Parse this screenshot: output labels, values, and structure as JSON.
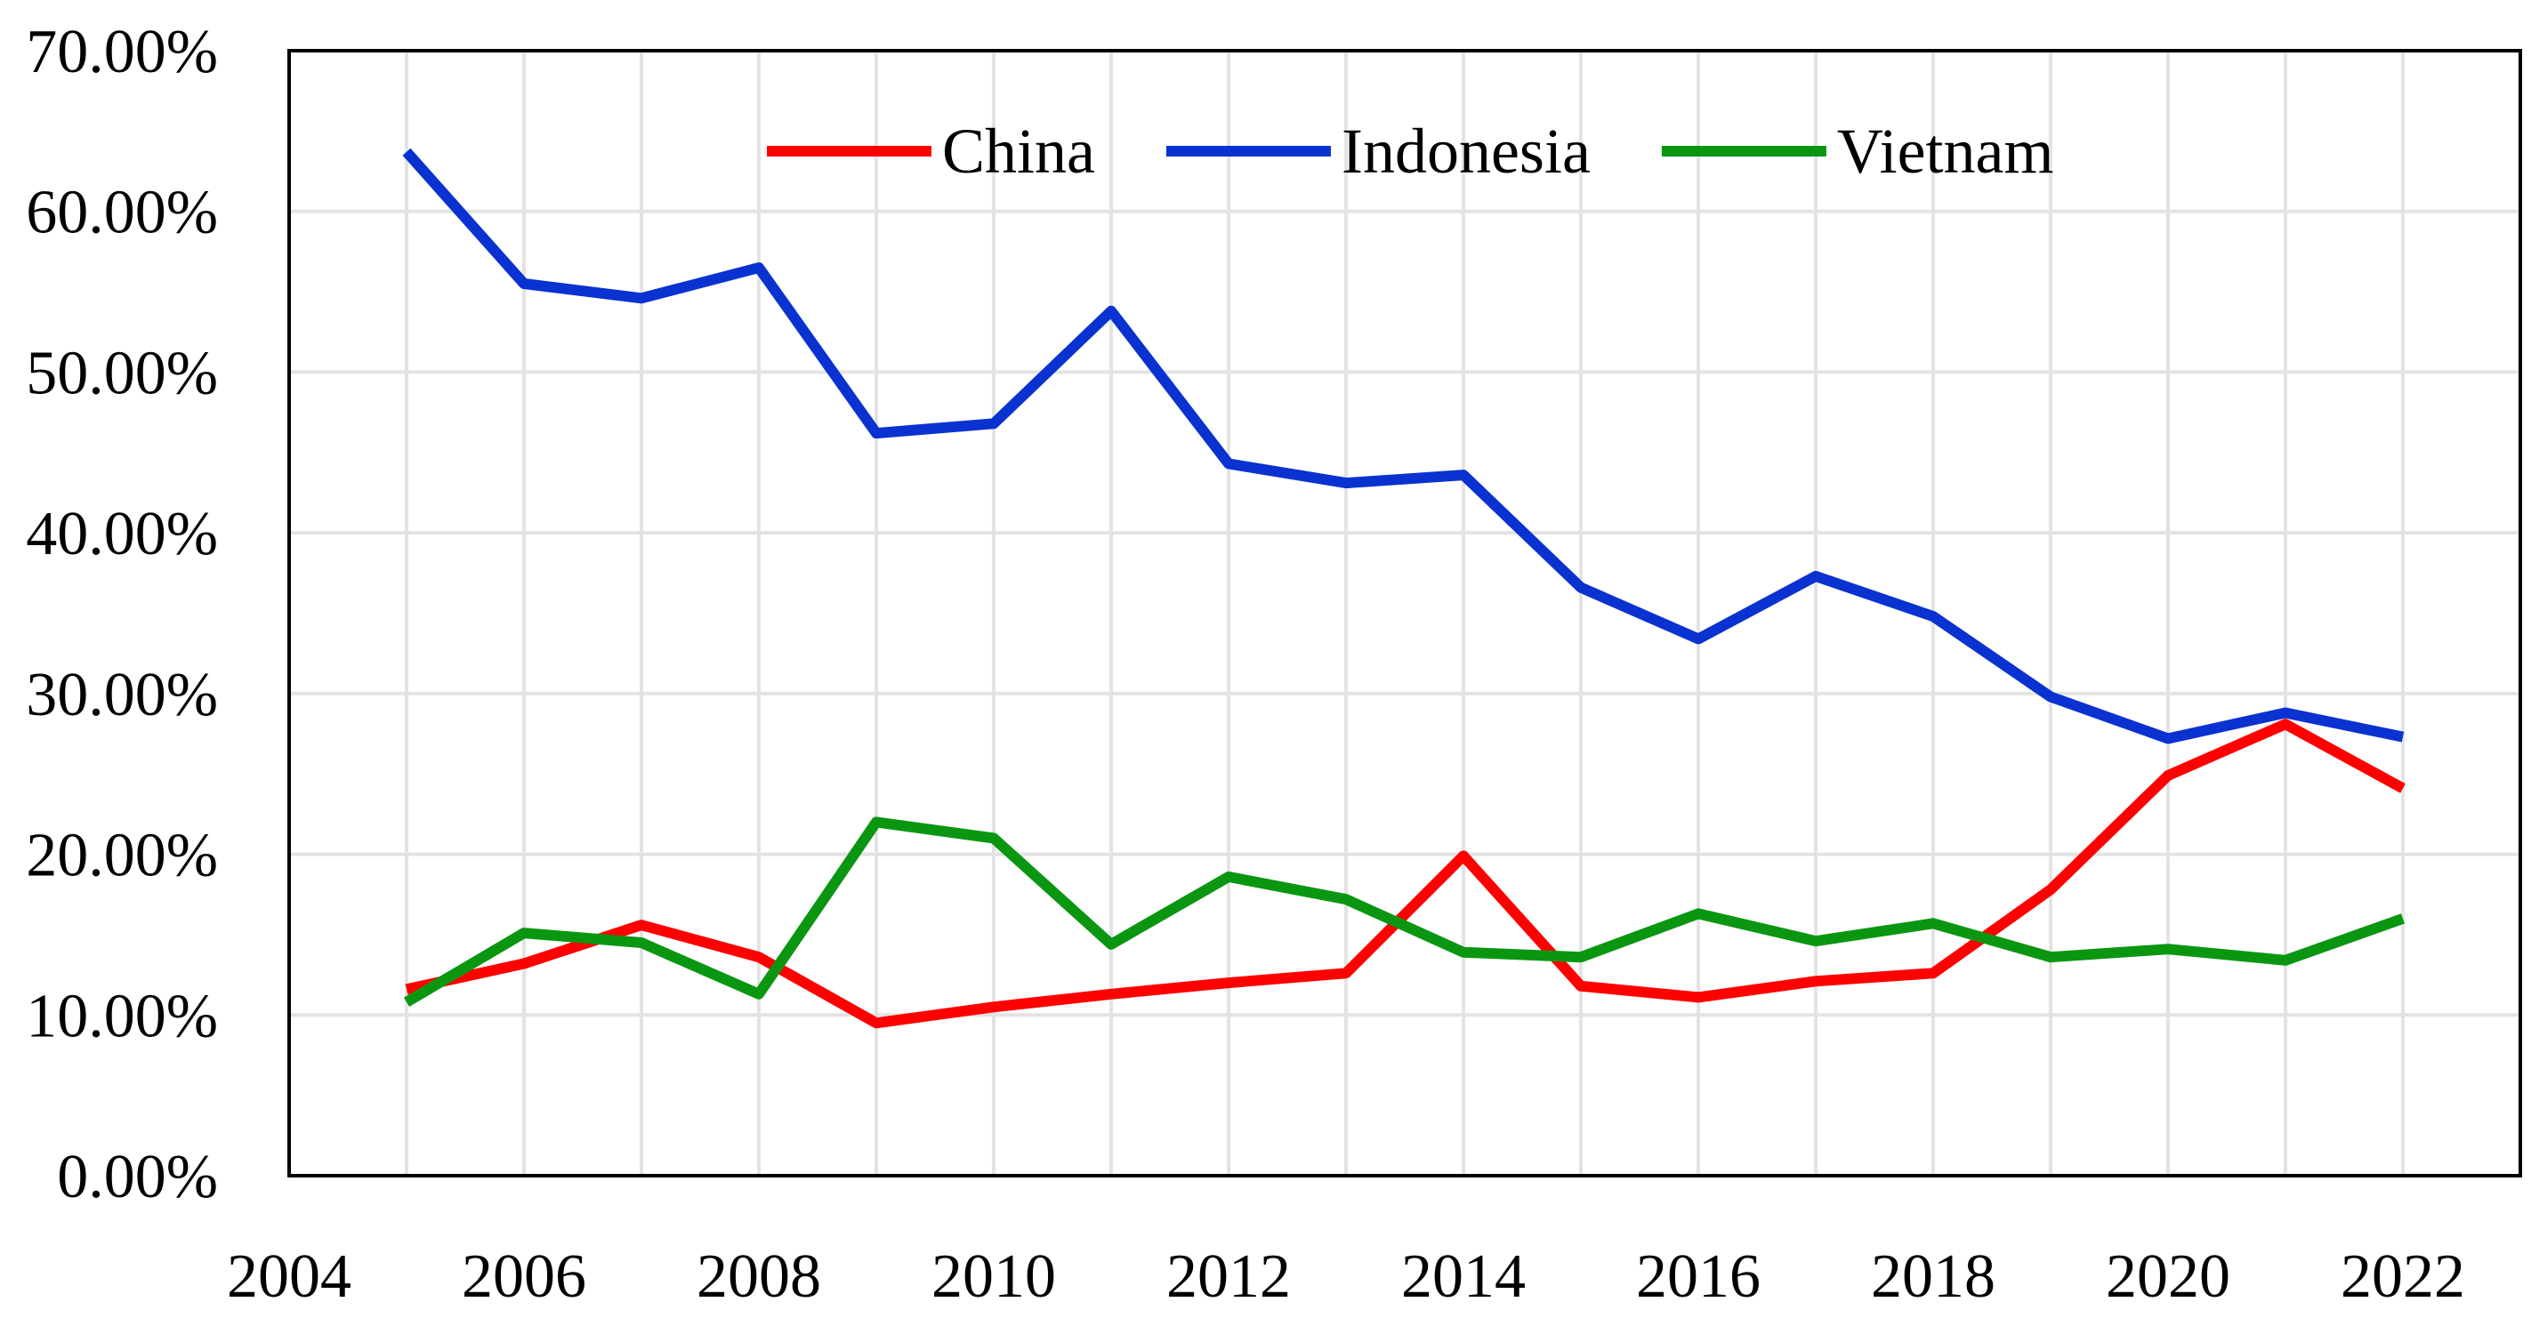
{
  "chart_data": {
    "type": "line",
    "title": "",
    "xlabel": "",
    "ylabel": "",
    "xlim": [
      2004,
      2023
    ],
    "ylim": [
      0,
      70
    ],
    "x_ticks": [
      2004,
      2006,
      2008,
      2010,
      2012,
      2014,
      2016,
      2018,
      2020,
      2022
    ],
    "x_tick_labels": [
      "2004",
      "2006",
      "2008",
      "2010",
      "2012",
      "2014",
      "2016",
      "2018",
      "2020",
      "2022"
    ],
    "y_ticks": [
      0,
      10,
      20,
      30,
      40,
      50,
      60,
      70
    ],
    "y_tick_labels": [
      "0.00%",
      "10.00%",
      "20.00%",
      "30.00%",
      "40.00%",
      "50.00%",
      "60.00%",
      "70.00%"
    ],
    "grid": true,
    "legend_position": "top-center",
    "x": [
      2005,
      2006,
      2007,
      2008,
      2009,
      2010,
      2011,
      2012,
      2013,
      2014,
      2015,
      2016,
      2017,
      2018,
      2019,
      2020,
      2021,
      2022
    ],
    "series": [
      {
        "name": "China",
        "color": "#ff0000",
        "values": [
          11.6,
          13.2,
          15.6,
          13.6,
          9.5,
          10.5,
          11.3,
          12.0,
          12.6,
          19.9,
          11.8,
          11.1,
          12.1,
          12.6,
          17.8,
          24.9,
          28.1,
          24.1
        ]
      },
      {
        "name": "Indonesia",
        "color": "#0a32d0",
        "values": [
          63.7,
          55.5,
          54.6,
          56.5,
          46.2,
          46.8,
          53.8,
          44.3,
          43.1,
          43.6,
          36.6,
          33.4,
          37.3,
          34.8,
          29.8,
          27.2,
          28.8,
          27.3
        ]
      },
      {
        "name": "Vietnam",
        "color": "#0b9612",
        "values": [
          10.8,
          15.1,
          14.5,
          11.3,
          22.0,
          21.0,
          14.4,
          18.6,
          17.2,
          13.9,
          13.6,
          16.3,
          14.6,
          15.7,
          13.6,
          14.1,
          13.4,
          16.0
        ]
      }
    ]
  }
}
